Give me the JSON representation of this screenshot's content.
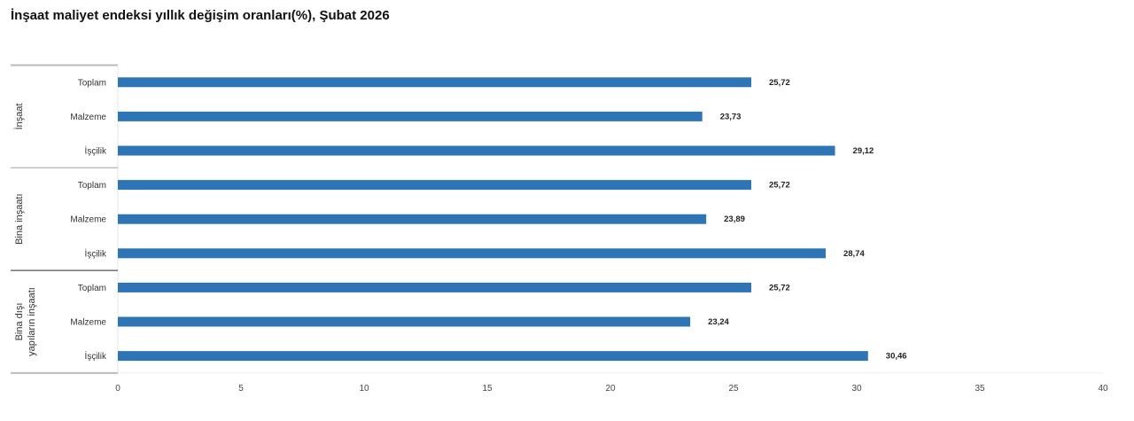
{
  "chart_data": {
    "type": "bar",
    "orientation": "horizontal",
    "title": "İnşaat maliyet endeksi yıllık değişim oranları(%), Şubat 2026",
    "xlabel": "",
    "ylabel": "",
    "xlim": [
      0,
      40
    ],
    "xticks": [
      "0",
      "5",
      "10",
      "15",
      "20",
      "25",
      "30",
      "35",
      "40"
    ],
    "grid": false,
    "bar_color": "#2e75b6",
    "groups": [
      {
        "name": "İnşaat",
        "categories": [
          "Toplam",
          "Malzeme",
          "İşçilik"
        ],
        "values": [
          25.72,
          23.73,
          29.12
        ],
        "labels": [
          "25,72",
          "23,73",
          "29,12"
        ]
      },
      {
        "name": "Bina inşaatı",
        "categories": [
          "Toplam",
          "Malzeme",
          "İşçilik"
        ],
        "values": [
          25.72,
          23.89,
          28.74
        ],
        "labels": [
          "25,72",
          "23,89",
          "28,74"
        ]
      },
      {
        "name_lines": [
          "Bina dışı",
          "yapıların inşaatı"
        ],
        "categories": [
          "Toplam",
          "Malzeme",
          "İşçilik"
        ],
        "values": [
          25.72,
          23.24,
          30.46
        ],
        "labels": [
          "25,72",
          "23,24",
          "30,46"
        ]
      }
    ]
  }
}
